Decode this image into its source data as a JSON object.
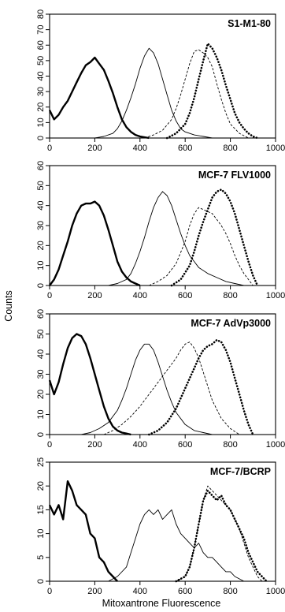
{
  "figure": {
    "ylabel": "Counts",
    "xlabel": "Mitoxantrone Fluorescence"
  },
  "chart_data": [
    {
      "type": "line",
      "title": "S1-M1-80",
      "xlim": [
        0,
        1000
      ],
      "ylim": [
        0,
        80
      ],
      "x_ticks": [
        0,
        200,
        400,
        600,
        800,
        1000
      ],
      "y_ticks": [
        0,
        10,
        20,
        30,
        40,
        50,
        60,
        70,
        80
      ],
      "series": [
        {
          "style": "thick-solid",
          "x": [
            0,
            20,
            40,
            60,
            80,
            100,
            120,
            140,
            160,
            180,
            200,
            220,
            240,
            260,
            280,
            300,
            320,
            340,
            360,
            380,
            400,
            420,
            440
          ],
          "y": [
            18,
            12,
            15,
            20,
            24,
            30,
            36,
            42,
            47,
            49,
            52,
            48,
            44,
            37,
            29,
            20,
            12,
            7,
            4,
            2,
            1,
            0.5,
            0
          ]
        },
        {
          "style": "thin-solid",
          "x": [
            200,
            240,
            280,
            300,
            320,
            340,
            360,
            380,
            400,
            420,
            440,
            460,
            480,
            500,
            520,
            540,
            560,
            580,
            600,
            640,
            680,
            720
          ],
          "y": [
            0,
            1,
            3,
            6,
            11,
            18,
            26,
            35,
            45,
            53,
            58,
            55,
            48,
            38,
            28,
            18,
            11,
            6,
            4,
            2,
            1,
            0
          ]
        },
        {
          "style": "dashed",
          "x": [
            420,
            460,
            500,
            540,
            560,
            580,
            600,
            620,
            640,
            660,
            680,
            700,
            720,
            740,
            760,
            780,
            800,
            840,
            880
          ],
          "y": [
            0,
            2,
            5,
            12,
            19,
            28,
            38,
            48,
            56,
            57,
            55,
            52,
            46,
            35,
            25,
            16,
            9,
            3,
            0
          ]
        },
        {
          "style": "dotted",
          "x": [
            520,
            560,
            600,
            620,
            640,
            660,
            680,
            700,
            720,
            740,
            760,
            780,
            800,
            820,
            840,
            860,
            880,
            900,
            920
          ],
          "y": [
            0,
            3,
            9,
            16,
            26,
            38,
            50,
            61,
            58,
            52,
            44,
            34,
            25,
            16,
            10,
            6,
            3,
            1,
            0
          ]
        }
      ]
    },
    {
      "type": "line",
      "title": "MCF-7 FLV1000",
      "xlim": [
        0,
        1000
      ],
      "ylim": [
        0,
        60
      ],
      "x_ticks": [
        0,
        200,
        400,
        600,
        800,
        1000
      ],
      "y_ticks": [
        0,
        10,
        20,
        30,
        40,
        50,
        60
      ],
      "series": [
        {
          "style": "thick-solid",
          "x": [
            0,
            20,
            40,
            60,
            80,
            100,
            120,
            140,
            160,
            180,
            200,
            220,
            240,
            260,
            280,
            300,
            320,
            340,
            360,
            380,
            400
          ],
          "y": [
            0,
            3,
            8,
            15,
            22,
            30,
            36,
            40,
            41,
            41,
            42,
            40,
            35,
            28,
            20,
            12,
            7,
            4,
            2,
            1,
            0
          ]
        },
        {
          "style": "thin-solid",
          "x": [
            260,
            300,
            340,
            360,
            380,
            400,
            420,
            440,
            460,
            480,
            500,
            520,
            540,
            560,
            580,
            600,
            620,
            640,
            660,
            700,
            740,
            780,
            820,
            860
          ],
          "y": [
            0,
            1,
            3,
            6,
            11,
            17,
            24,
            32,
            39,
            44,
            47,
            45,
            40,
            33,
            26,
            20,
            15,
            12,
            9,
            6,
            4,
            2,
            1,
            0
          ]
        },
        {
          "style": "dashed",
          "x": [
            440,
            480,
            520,
            560,
            600,
            620,
            640,
            660,
            680,
            700,
            720,
            740,
            760,
            780,
            800,
            820,
            840,
            860,
            880,
            900
          ],
          "y": [
            0,
            2,
            5,
            11,
            22,
            30,
            36,
            39,
            38,
            37,
            36,
            33,
            30,
            26,
            21,
            15,
            10,
            6,
            3,
            0
          ]
        },
        {
          "style": "dotted",
          "x": [
            540,
            580,
            620,
            640,
            660,
            680,
            700,
            720,
            740,
            760,
            780,
            800,
            820,
            840,
            860,
            880,
            900,
            920
          ],
          "y": [
            0,
            3,
            10,
            17,
            25,
            32,
            38,
            44,
            47,
            48,
            46,
            42,
            36,
            28,
            20,
            12,
            5,
            0
          ]
        }
      ]
    },
    {
      "type": "line",
      "title": "MCF-7 AdVp3000",
      "xlim": [
        0,
        1000
      ],
      "ylim": [
        0,
        60
      ],
      "x_ticks": [
        0,
        200,
        400,
        600,
        800,
        1000
      ],
      "y_ticks": [
        0,
        10,
        20,
        30,
        40,
        50,
        60
      ],
      "series": [
        {
          "style": "thick-solid",
          "x": [
            0,
            20,
            40,
            60,
            80,
            100,
            120,
            140,
            160,
            180,
            200,
            220,
            240,
            260,
            280,
            300,
            320,
            340,
            360
          ],
          "y": [
            27,
            20,
            26,
            35,
            43,
            48,
            50,
            49,
            45,
            38,
            30,
            22,
            14,
            8,
            4,
            2,
            1,
            0.5,
            0
          ]
        },
        {
          "style": "thin-solid",
          "x": [
            140,
            180,
            220,
            260,
            300,
            320,
            340,
            360,
            380,
            400,
            420,
            440,
            460,
            480,
            500,
            520,
            540,
            560,
            600,
            640,
            680,
            720
          ],
          "y": [
            0,
            1,
            3,
            6,
            12,
            17,
            23,
            30,
            37,
            42,
            45,
            45,
            42,
            36,
            29,
            22,
            16,
            11,
            5,
            2,
            1,
            0
          ]
        },
        {
          "style": "dashed",
          "x": [
            240,
            280,
            320,
            360,
            400,
            440,
            480,
            520,
            560,
            580,
            600,
            620,
            640,
            660,
            680,
            700,
            720,
            760,
            800,
            840
          ],
          "y": [
            0,
            2,
            5,
            9,
            14,
            20,
            26,
            32,
            38,
            42,
            45,
            46,
            43,
            38,
            31,
            24,
            17,
            8,
            3,
            0
          ]
        },
        {
          "style": "dotted",
          "x": [
            440,
            480,
            520,
            560,
            600,
            640,
            660,
            680,
            700,
            720,
            740,
            760,
            780,
            800,
            820,
            840,
            860,
            880,
            900
          ],
          "y": [
            0,
            2,
            6,
            13,
            23,
            33,
            38,
            42,
            44,
            45,
            47,
            46,
            42,
            36,
            28,
            20,
            12,
            5,
            0
          ]
        }
      ]
    },
    {
      "type": "line",
      "title": "MCF-7/BCRP",
      "xlim": [
        0,
        1000
      ],
      "ylim": [
        0,
        25
      ],
      "x_ticks": [
        0,
        200,
        400,
        600,
        800,
        1000
      ],
      "y_ticks": [
        0,
        5,
        10,
        15,
        20,
        25
      ],
      "series": [
        {
          "style": "thick-solid",
          "x": [
            0,
            20,
            40,
            60,
            80,
            100,
            120,
            140,
            160,
            180,
            200,
            220,
            240,
            260,
            280,
            300
          ],
          "y": [
            16,
            14,
            16,
            13,
            21,
            19,
            16,
            15,
            14,
            10,
            9,
            5,
            4,
            2,
            1,
            0
          ]
        },
        {
          "style": "thin-solid",
          "x": [
            260,
            300,
            340,
            360,
            380,
            400,
            420,
            440,
            460,
            480,
            500,
            520,
            540,
            560,
            580,
            600,
            620,
            640,
            660,
            680,
            700,
            720,
            740,
            760,
            780,
            800,
            820,
            840,
            860
          ],
          "y": [
            0,
            1,
            3,
            6,
            9,
            12,
            14,
            15,
            14,
            15,
            13,
            14,
            15,
            12,
            10,
            9,
            8,
            7,
            8,
            6,
            5,
            5,
            4,
            3,
            2,
            2,
            1,
            0.5,
            0
          ]
        },
        {
          "style": "dashed",
          "x": [
            560,
            600,
            620,
            640,
            660,
            680,
            700,
            720,
            740,
            760,
            780,
            800,
            820,
            840,
            860,
            880,
            900,
            920,
            940
          ],
          "y": [
            0,
            1,
            3,
            7,
            12,
            17,
            20,
            19,
            18,
            17,
            16,
            15,
            13,
            11,
            8,
            5,
            3,
            1,
            0
          ]
        },
        {
          "style": "dotted",
          "x": [
            560,
            600,
            620,
            640,
            660,
            680,
            700,
            720,
            740,
            760,
            780,
            800,
            820,
            840,
            860,
            880,
            900,
            920,
            940,
            960
          ],
          "y": [
            0,
            1,
            3,
            7,
            12,
            17,
            19,
            18,
            17,
            18,
            16,
            15,
            13,
            11,
            9,
            6,
            4,
            2,
            1,
            0
          ]
        }
      ]
    }
  ]
}
